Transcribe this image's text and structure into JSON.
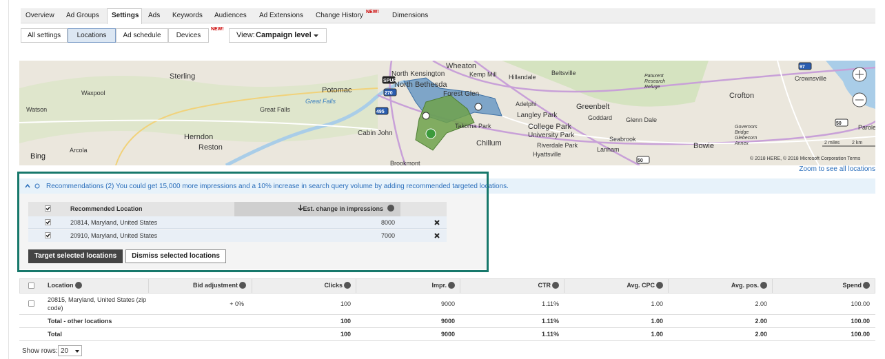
{
  "tabs": [
    "Overview",
    "Ad Groups",
    "Settings",
    "Ads",
    "Keywords",
    "Audiences",
    "Ad Extensions",
    "Change History",
    "Dimensions"
  ],
  "tab_badge": "NEW!",
  "subtabs": [
    "All settings",
    "Locations",
    "Ad schedule",
    "Devices"
  ],
  "subtab_badge": "NEW!",
  "view": {
    "label": "View:",
    "value": "Campaign level"
  },
  "map": {
    "labels": [
      "Sterling",
      "Waxpool",
      "Watson",
      "Potomac",
      "Great Falls",
      "Great Falls",
      "Herndon",
      "Reston",
      "Arcola",
      "Cabin John",
      "Wheaton",
      "North Kensington",
      "North Bethesda",
      "Kemp Mill",
      "Hillandale",
      "Beltsville",
      "Forest Glen",
      "Adelphi",
      "Langley Park",
      "Greenbelt",
      "Goddard",
      "Glenn Dale",
      "Takoma Park",
      "College Park",
      "University Park",
      "Riverdale Park",
      "Hyattsville",
      "Chillum",
      "Seabrook",
      "Lanham",
      "Bowie",
      "Crofton",
      "Crownsville",
      "Parole",
      "Patuxent",
      "Research",
      "Refuge",
      "Governors",
      "Bridge",
      "Glebecorn",
      "Annex",
      "Brookmont"
    ],
    "shields": [
      "SPUR",
      "270",
      "495",
      "50",
      "50",
      "97"
    ],
    "brand": "Bing",
    "scale": [
      "2 miles",
      "2 km"
    ],
    "attribution": "© 2018 HERE, © 2018 Microsoft Corporation  Terms",
    "zoom_link": "Zoom to see all locations"
  },
  "recommendations": {
    "text": "Recommendations (2) You could get 15,000 more impressions and a 10% increase in search query volume by adding recommended targeted locations.",
    "columns": [
      "Recommended Location",
      "Est. change in impressions"
    ],
    "rows": [
      [
        "20814, Maryland, United States",
        "8000"
      ],
      [
        "20910, Maryland, United States",
        "7000"
      ]
    ],
    "buttons": [
      "Target selected locations",
      "Dismiss selected locations"
    ]
  },
  "table": {
    "columns": [
      "Location",
      "Bid adjustment",
      "Clicks",
      "Impr.",
      "CTR",
      "Avg. CPC",
      "Avg. pos.",
      "Spend"
    ],
    "rows": [
      {
        "location": [
          "20815, Maryland, United States (zip",
          "code)"
        ],
        "bid": "+ 0%",
        "values": [
          "100",
          "9000",
          "1.11%",
          "1.00",
          "2.00",
          "100.00"
        ]
      }
    ],
    "totals": [
      {
        "label": "Total - other locations",
        "values": [
          "100",
          "9000",
          "1.11%",
          "1.00",
          "2.00",
          "100.00"
        ]
      },
      {
        "label": "Total",
        "values": [
          "100",
          "9000",
          "1.11%",
          "1.00",
          "2.00",
          "100.00"
        ]
      }
    ]
  },
  "pager": {
    "label": "Show rows:",
    "value": "20"
  }
}
